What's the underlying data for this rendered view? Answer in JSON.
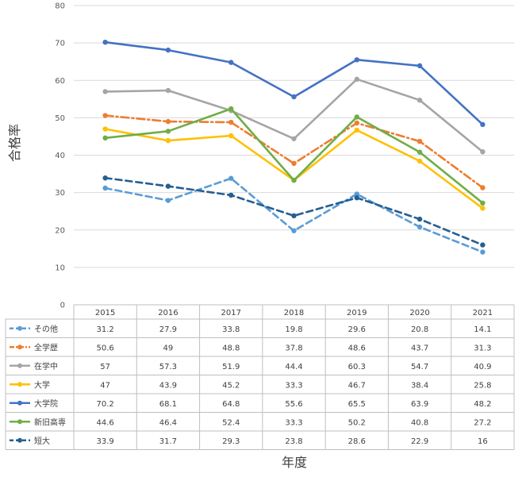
{
  "chart_data": {
    "type": "line",
    "title": "",
    "xlabel": "年度",
    "ylabel": "合格率",
    "ylim": [
      0,
      80
    ],
    "yticks": [
      0,
      10,
      20,
      30,
      40,
      50,
      60,
      70,
      80
    ],
    "grid": true,
    "legend": "data-table-left",
    "categories": [
      "2015",
      "2016",
      "2017",
      "2018",
      "2019",
      "2020",
      "2021"
    ],
    "series": [
      {
        "name": "その他",
        "values": [
          31.2,
          27.9,
          33.8,
          19.8,
          29.6,
          20.8,
          14.1
        ],
        "color": "#5B9BD5",
        "dash": "dash"
      },
      {
        "name": "全学歴",
        "values": [
          50.6,
          49,
          48.8,
          37.8,
          48.6,
          43.7,
          31.3
        ],
        "color": "#ED7D31",
        "dash": "dashdot"
      },
      {
        "name": "在学中",
        "values": [
          57,
          57.3,
          51.9,
          44.4,
          60.3,
          54.7,
          40.9
        ],
        "color": "#A5A5A5",
        "dash": "solid"
      },
      {
        "name": "大学",
        "values": [
          47,
          43.9,
          45.2,
          33.3,
          46.7,
          38.4,
          25.8
        ],
        "color": "#FFC000",
        "dash": "solid"
      },
      {
        "name": "大学院",
        "values": [
          70.2,
          68.1,
          64.8,
          55.6,
          65.5,
          63.9,
          48.2
        ],
        "color": "#4472C4",
        "dash": "solid"
      },
      {
        "name": "新旧高専",
        "values": [
          44.6,
          46.4,
          52.4,
          33.3,
          50.2,
          40.8,
          27.2
        ],
        "color": "#70AD47",
        "dash": "solid"
      },
      {
        "name": "短大",
        "values": [
          33.9,
          31.7,
          29.3,
          23.8,
          28.6,
          22.9,
          16
        ],
        "color": "#255E91",
        "dash": "dash"
      }
    ]
  }
}
